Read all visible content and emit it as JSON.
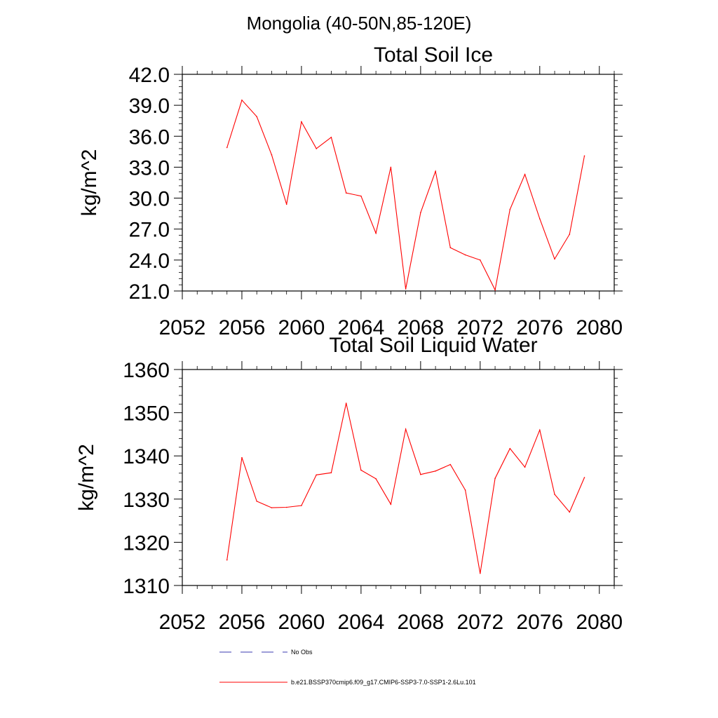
{
  "figure_title": "Mongolia (40-50N,85-120E)",
  "legend": [
    {
      "label": "No Obs",
      "color": "#3b3bb0",
      "style": "dashed"
    },
    {
      "label": "b.e21.BSSP370cmip6.f09_g17.CMIP6-SSP3-7.0-SSP1-2.6Lu.101",
      "color": "#ff0000",
      "style": "solid"
    }
  ],
  "chart_data": [
    {
      "type": "line",
      "title": "Total Soil Ice",
      "ylabel": "kg/m^2",
      "xlim": [
        2052,
        2081
      ],
      "ylim": [
        21.0,
        42.0
      ],
      "xticks": [
        2052,
        2056,
        2060,
        2064,
        2068,
        2072,
        2076,
        2080
      ],
      "yticks": [
        "21.0",
        "24.0",
        "27.0",
        "30.0",
        "33.0",
        "36.0",
        "39.0",
        "42.0"
      ],
      "grid": false,
      "series": [
        {
          "color": "#ff0000",
          "x": [
            2055,
            2056,
            2057,
            2058,
            2059,
            2060,
            2061,
            2062,
            2063,
            2064,
            2065,
            2066,
            2067,
            2068,
            2069,
            2070,
            2071,
            2072,
            2073,
            2074,
            2075,
            2076,
            2077,
            2078,
            2079
          ],
          "values": [
            34.9,
            39.5,
            37.9,
            34.2,
            29.4,
            37.4,
            34.8,
            35.9,
            30.5,
            30.2,
            26.6,
            33.0,
            21.2,
            28.6,
            32.6,
            25.2,
            24.5,
            24.0,
            21.1,
            28.9,
            32.3,
            28.0,
            24.1,
            26.5,
            34.1
          ]
        }
      ]
    },
    {
      "type": "line",
      "title": "Total Soil Liquid Water",
      "ylabel": "kg/m^2",
      "xlim": [
        2052,
        2081
      ],
      "ylim": [
        1310,
        1360
      ],
      "xticks": [
        2052,
        2056,
        2060,
        2064,
        2068,
        2072,
        2076,
        2080
      ],
      "yticks": [
        "1310",
        "1320",
        "1330",
        "1340",
        "1350",
        "1360"
      ],
      "grid": false,
      "series": [
        {
          "color": "#ff0000",
          "x": [
            2055,
            2056,
            2057,
            2058,
            2059,
            2060,
            2061,
            2062,
            2063,
            2064,
            2065,
            2066,
            2067,
            2068,
            2069,
            2070,
            2071,
            2072,
            2073,
            2074,
            2075,
            2076,
            2077,
            2078,
            2079
          ],
          "values": [
            1315.9,
            1339.6,
            1329.5,
            1328.0,
            1328.1,
            1328.5,
            1335.6,
            1336.1,
            1352.2,
            1336.7,
            1334.7,
            1328.8,
            1346.2,
            1335.7,
            1336.5,
            1338.0,
            1332.1,
            1312.8,
            1334.8,
            1341.7,
            1337.4,
            1346.0,
            1331.1,
            1327.0,
            1335.0
          ]
        }
      ]
    }
  ]
}
